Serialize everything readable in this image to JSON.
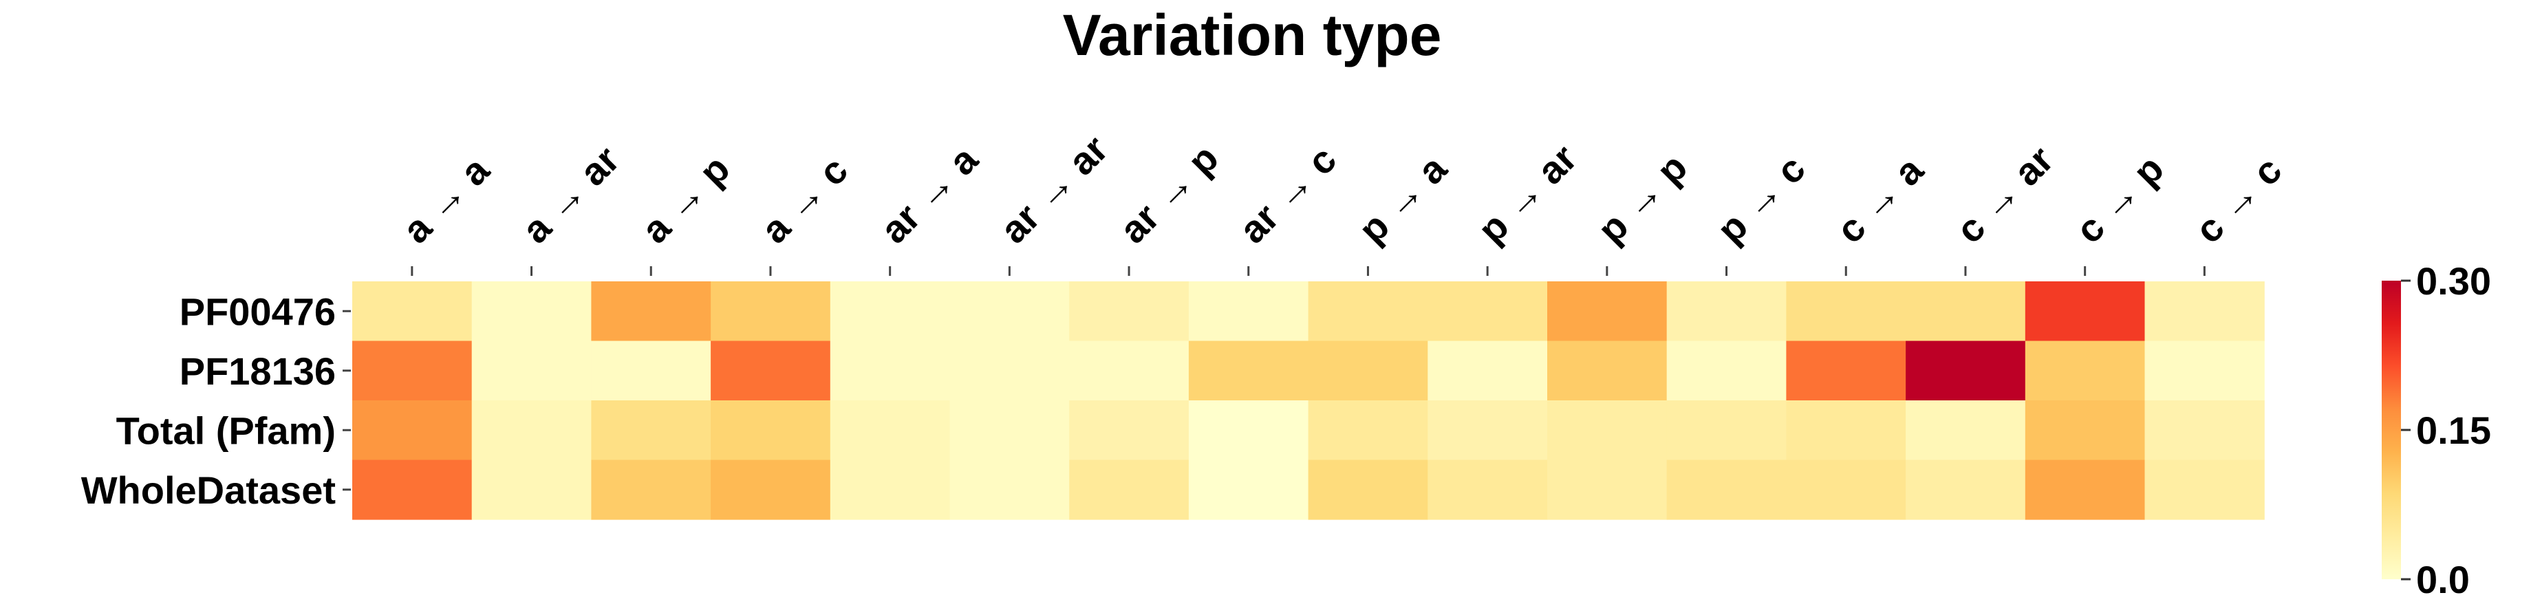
{
  "chart_data": {
    "type": "heatmap",
    "title": "Variation type",
    "xlabel": "",
    "ylabel": "",
    "x_categories": [
      "a → a",
      "a → ar",
      "a → p",
      "a → c",
      "ar → a",
      "ar → ar",
      "ar → p",
      "ar → c",
      "p → a",
      "p → ar",
      "p → p",
      "p → c",
      "c → a",
      "c → ar",
      "c → p",
      "c → c"
    ],
    "y_categories": [
      "PF00476",
      "PF18136",
      "Total (Pfam)",
      "WholeDataset"
    ],
    "values": [
      [
        0.05,
        0.01,
        0.14,
        0.1,
        0.01,
        0.01,
        0.03,
        0.01,
        0.06,
        0.06,
        0.14,
        0.03,
        0.07,
        0.07,
        0.23,
        0.03
      ],
      [
        0.18,
        0.01,
        0.01,
        0.19,
        0.01,
        0.01,
        0.01,
        0.09,
        0.09,
        0.01,
        0.1,
        0.01,
        0.19,
        0.3,
        0.1,
        0.01
      ],
      [
        0.16,
        0.02,
        0.07,
        0.09,
        0.02,
        0.01,
        0.03,
        0.0,
        0.05,
        0.03,
        0.04,
        0.04,
        0.05,
        0.02,
        0.11,
        0.03
      ],
      [
        0.19,
        0.02,
        0.1,
        0.12,
        0.02,
        0.01,
        0.05,
        0.0,
        0.08,
        0.05,
        0.04,
        0.06,
        0.06,
        0.04,
        0.14,
        0.04
      ]
    ],
    "colorbar": {
      "range": [
        0.0,
        0.3
      ],
      "ticks": [
        "0.0",
        "0.15",
        "0.30"
      ],
      "colormap": [
        "#ffffcc",
        "#ffeda0",
        "#fed976",
        "#feb24c",
        "#fd8d3c",
        "#fc4e2a",
        "#e31a1c",
        "#bd0026"
      ]
    },
    "x_tick_position": "top",
    "grid": false
  }
}
